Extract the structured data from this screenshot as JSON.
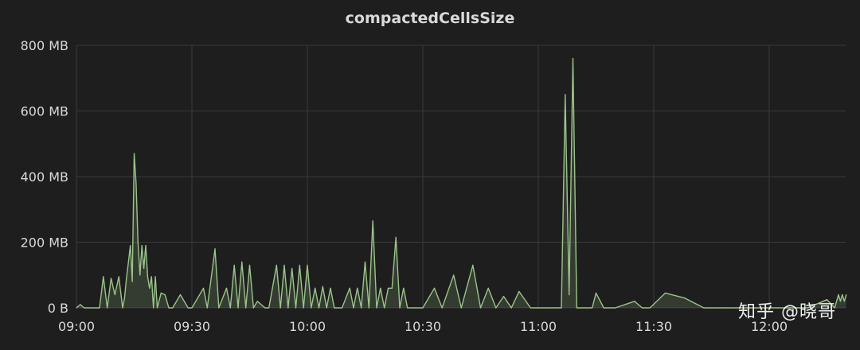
{
  "panel": {
    "title": "compactedCellsSize",
    "watermark": "知乎 @晓哥"
  },
  "colors": {
    "background": "#1e1e1e",
    "grid": "#3a3a3a",
    "text": "#d8d9da",
    "series_line": "#9bc48a",
    "series_fill": "#9bc48a"
  },
  "chart_data": {
    "type": "area",
    "title": "compactedCellsSize",
    "xlabel": "",
    "ylabel": "",
    "x_tick_labels": [
      "09:00",
      "09:30",
      "10:00",
      "10:30",
      "11:00",
      "11:30",
      "12:00"
    ],
    "y_tick_labels": [
      "0 B",
      "200 MB",
      "400 MB",
      "600 MB",
      "800 MB"
    ],
    "ylim": [
      0,
      800
    ],
    "y_unit": "MB",
    "grid": true,
    "legend": "none",
    "series": [
      {
        "x": [
          "09:00",
          "09:01",
          "09:02",
          "09:06",
          "09:07",
          "09:08",
          "09:09",
          "09:10",
          "09:11",
          "09:12",
          "09:12.5",
          "09:13",
          "09:13.5",
          "09:14",
          "09:14.5",
          "09:15",
          "09:15.5",
          "09:16",
          "09:16.5",
          "09:17",
          "09:17.5",
          "09:18",
          "09:18.5",
          "09:19",
          "09:19.5",
          "09:20",
          "09:20.5",
          "09:21",
          "09:22",
          "09:23",
          "09:24",
          "09:25",
          "09:27",
          "09:29",
          "09:30",
          "09:33",
          "09:34",
          "09:36",
          "09:37",
          "09:39",
          "09:40",
          "09:41",
          "09:42",
          "09:43",
          "09:44",
          "09:45",
          "09:46",
          "09:47",
          "09:49",
          "09:50",
          "09:52",
          "09:53",
          "09:54",
          "09:55",
          "09:56",
          "09:57",
          "09:58",
          "09:59",
          "10:00",
          "10:01",
          "10:02",
          "10:03",
          "10:04",
          "10:05",
          "10:06",
          "10:07",
          "10:08",
          "10:09",
          "10:11",
          "10:12",
          "10:13",
          "10:14",
          "10:15",
          "10:16",
          "10:17",
          "10:18",
          "10:19",
          "10:20",
          "10:21",
          "10:22",
          "10:23",
          "10:24",
          "10:25",
          "10:26",
          "10:27",
          "10:28",
          "10:30",
          "10:33",
          "10:35",
          "10:38",
          "10:40",
          "10:43",
          "10:45",
          "10:47",
          "10:49",
          "10:51",
          "10:53",
          "10:55",
          "10:58",
          "11:00",
          "11:02",
          "11:04",
          "11:05",
          "11:06",
          "11:07",
          "11:08",
          "11:09",
          "11:10",
          "11:11",
          "11:12",
          "11:13",
          "11:14",
          "11:15",
          "11:17",
          "11:20",
          "11:25",
          "11:27",
          "11:29",
          "11:33",
          "11:38",
          "11:43",
          "11:48",
          "11:52",
          "11:56",
          "12:00",
          "12:02",
          "12:05",
          "12:10",
          "12:15",
          "12:17",
          "12:18",
          "12:18.5",
          "12:19",
          "12:19.5",
          "12:20"
        ],
        "y": [
          0,
          10,
          0,
          0,
          95,
          0,
          90,
          40,
          95,
          0,
          30,
          90,
          140,
          190,
          80,
          470,
          380,
          200,
          100,
          190,
          120,
          190,
          95,
          60,
          95,
          0,
          95,
          0,
          45,
          40,
          0,
          0,
          40,
          0,
          0,
          60,
          0,
          180,
          0,
          60,
          0,
          130,
          0,
          140,
          0,
          130,
          0,
          20,
          0,
          0,
          130,
          0,
          130,
          0,
          120,
          0,
          130,
          0,
          130,
          0,
          60,
          0,
          65,
          0,
          60,
          0,
          0,
          0,
          60,
          0,
          60,
          0,
          140,
          0,
          265,
          0,
          60,
          0,
          60,
          60,
          215,
          0,
          60,
          0,
          0,
          0,
          0,
          60,
          0,
          100,
          0,
          130,
          0,
          60,
          0,
          35,
          0,
          50,
          0,
          0,
          0,
          0,
          0,
          0,
          650,
          40,
          760,
          0,
          0,
          0,
          0,
          0,
          45,
          0,
          0,
          20,
          0,
          0,
          45,
          30,
          0,
          0,
          0,
          0,
          0,
          0,
          0,
          0,
          25,
          0,
          40,
          20,
          40,
          20,
          40
        ]
      }
    ]
  }
}
